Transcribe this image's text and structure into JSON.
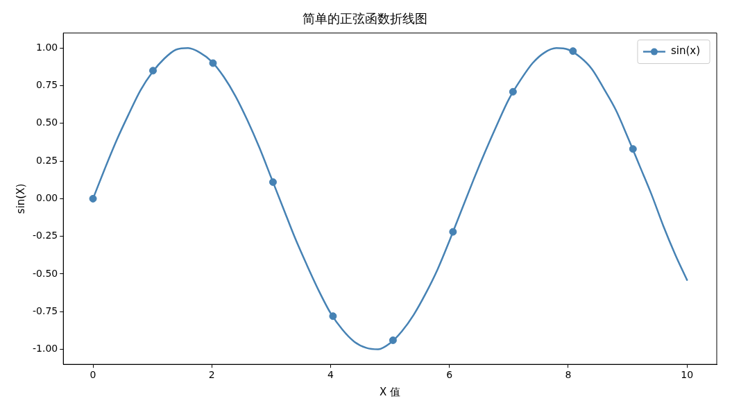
{
  "chart_data": {
    "type": "line",
    "title": "简单的正弦函数折线图",
    "xlabel": "X 值",
    "ylabel": "sin(X)",
    "xlim": [
      -0.5,
      10.5
    ],
    "xticks": [
      0,
      2,
      4,
      6,
      8,
      10
    ],
    "ylim": [
      -1.1,
      1.1
    ],
    "yticks": [
      {
        "value": -1,
        "label": "-1.00"
      },
      {
        "value": -0.75,
        "label": "-0.75"
      },
      {
        "value": -0.5,
        "label": "-0.50"
      },
      {
        "value": -0.25,
        "label": "-0.25"
      },
      {
        "value": 0,
        "label": "0.00"
      },
      {
        "value": 0.25,
        "label": "0.25"
      },
      {
        "value": 0.5,
        "label": "0.50"
      },
      {
        "value": 0.75,
        "label": "0.75"
      },
      {
        "value": 1,
        "label": "1.00"
      }
    ],
    "grid": false,
    "legend": "top right",
    "series": [
      {
        "name": "sin(x)",
        "marker": "none",
        "color": "#4682b4",
        "x": [
          0,
          0.2,
          0.4,
          0.6,
          0.8,
          1.0,
          1.2,
          1.4,
          1.6,
          1.8,
          2.0,
          2.2,
          2.4,
          2.6,
          2.8,
          3.0,
          3.2,
          3.4,
          3.6,
          3.8,
          4.0,
          4.2,
          4.4,
          4.6,
          4.8,
          5.0,
          5.2,
          5.4,
          5.6,
          5.8,
          6.0,
          6.2,
          6.4,
          6.6,
          6.8,
          7.0,
          7.2,
          7.4,
          7.6,
          7.8,
          8.0,
          8.2,
          8.4,
          8.6,
          8.8,
          9.0,
          9.2,
          9.4,
          9.6,
          9.8,
          10
        ],
        "values": [
          0,
          0.2,
          0.39,
          0.56,
          0.72,
          0.84,
          0.93,
          0.99,
          1.0,
          0.97,
          0.91,
          0.81,
          0.68,
          0.52,
          0.34,
          0.14,
          -0.06,
          -0.26,
          -0.44,
          -0.61,
          -0.76,
          -0.87,
          -0.95,
          -0.99,
          -1.0,
          -0.96,
          -0.88,
          -0.77,
          -0.63,
          -0.47,
          -0.28,
          -0.08,
          0.12,
          0.31,
          0.49,
          0.66,
          0.79,
          0.9,
          0.97,
          1.0,
          0.99,
          0.94,
          0.86,
          0.73,
          0.59,
          0.41,
          0.22,
          0.03,
          -0.18,
          -0.37,
          -0.54
        ]
      },
      {
        "type": "scatter",
        "marker": "circle",
        "color": "#4682b4",
        "x": [
          0,
          1.01,
          2.02,
          3.03,
          4.04,
          5.05,
          6.06,
          7.07,
          8.08,
          9.09
        ],
        "values": [
          0,
          0.85,
          0.9,
          0.11,
          -0.78,
          -0.94,
          -0.22,
          0.71,
          0.98,
          0.33
        ]
      }
    ]
  }
}
